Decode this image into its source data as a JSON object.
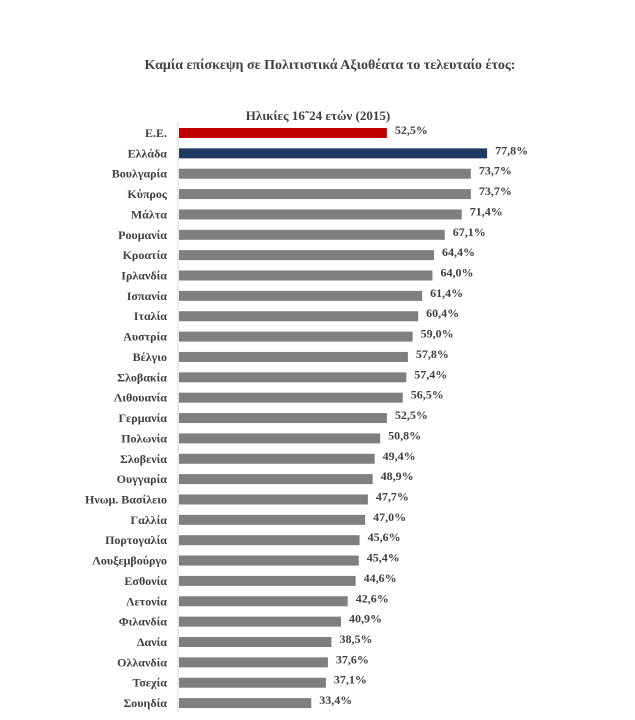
{
  "chart_data": {
    "type": "bar",
    "orientation": "horizontal",
    "title": "Καμία επίσκεψη σε Πολιτιστικά Αξιοθέατα το τελευταίο έτος:",
    "subtitle": "Ηλικίες 16˜24 ετών (2015)",
    "categories": [
      "Ε.Ε.",
      "Ελλάδα",
      "Βουλγαρία",
      "Κύπρος",
      "Μάλτα",
      "Ρουμανία",
      "Κροατία",
      "Ιρλανδία",
      "Ισπανία",
      "Ιταλία",
      "Αυστρία",
      "Βέλγιο",
      "Σλοβακία",
      "Λιθουανία",
      "Γερμανία",
      "Πολωνία",
      "Σλοβενία",
      "Ουγγαρία",
      "Ηνωμ. Βασίλειο",
      "Γαλλία",
      "Πορτογαλία",
      "Λουξεμβούργο",
      "Εσθονία",
      "Λετονία",
      "Φιλανδία",
      "Δανία",
      "Ολλανδία",
      "Τσεχία",
      "Σουηδία"
    ],
    "values": [
      52.5,
      77.8,
      73.7,
      73.7,
      71.4,
      67.1,
      64.4,
      64.0,
      61.4,
      60.4,
      59.0,
      57.8,
      57.4,
      56.5,
      52.5,
      50.8,
      49.4,
      48.9,
      47.7,
      47.0,
      45.6,
      45.4,
      44.6,
      42.6,
      40.9,
      38.5,
      37.6,
      37.1,
      33.4
    ],
    "value_labels": [
      "52,5%",
      "77,8%",
      "73,7%",
      "73,7%",
      "71,4%",
      "67,1%",
      "64,4%",
      "64,0%",
      "61,4%",
      "60,4%",
      "59,0%",
      "57,8%",
      "57,4%",
      "56,5%",
      "52,5%",
      "50,8%",
      "49,4%",
      "48,9%",
      "47,7%",
      "47,0%",
      "45,6%",
      "45,4%",
      "44,6%",
      "42,6%",
      "40,9%",
      "38,5%",
      "37,6%",
      "37,1%",
      "33,4%"
    ],
    "colors": {
      "eu": "#C00000",
      "greece": "#1F3864",
      "default": "#7F7F7F"
    },
    "unit": "%",
    "grid": false,
    "legend": "none"
  }
}
